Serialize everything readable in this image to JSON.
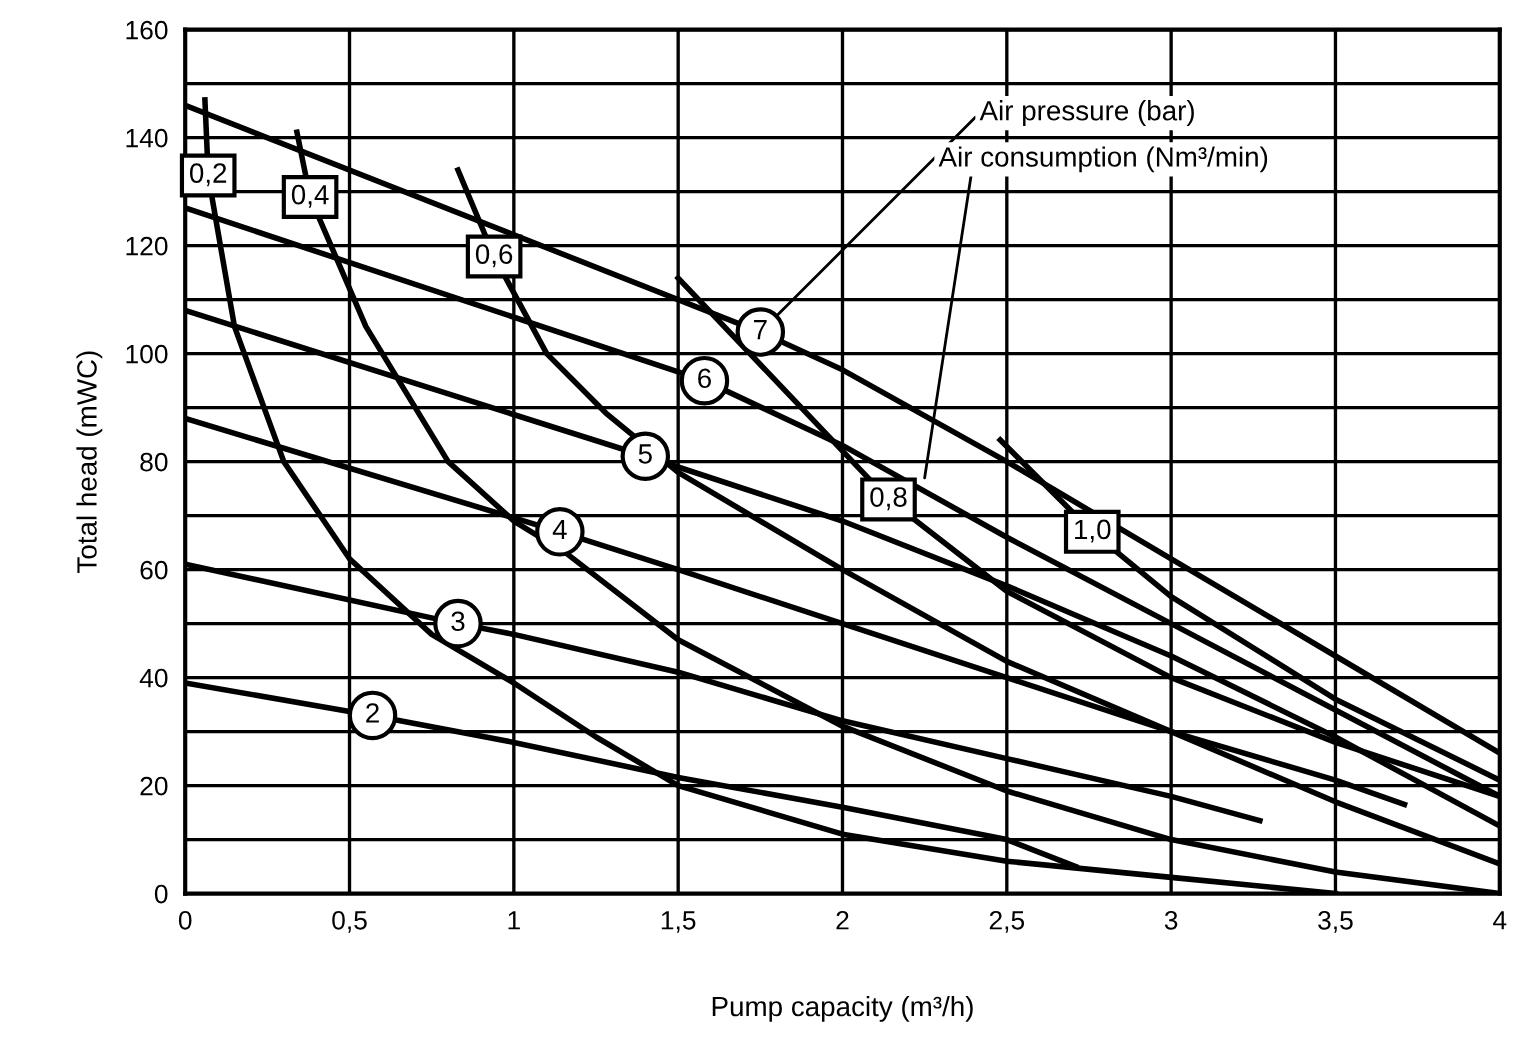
{
  "chart_data": {
    "type": "line",
    "xlabel": "Pump capacity (m³/h)",
    "ylabel": "Total head (mWC)",
    "xlim": [
      0,
      4
    ],
    "ylim": [
      0,
      160
    ],
    "xticks": [
      0,
      {
        "value": 0.5,
        "label": "0,5"
      },
      1,
      {
        "value": 1.5,
        "label": "1,5"
      },
      2,
      {
        "value": 2.5,
        "label": "2,5"
      },
      3,
      {
        "value": 3.5,
        "label": "3,5"
      },
      4
    ],
    "yticks": [
      0,
      {
        "value": 10,
        "label": null
      },
      20,
      {
        "value": 30,
        "label": null
      },
      40,
      {
        "value": 50,
        "label": null
      },
      60,
      {
        "value": 70,
        "label": null
      },
      80,
      {
        "value": 90,
        "label": null
      },
      100,
      {
        "value": 110,
        "label": null
      },
      120,
      {
        "value": 130,
        "label": null
      },
      140,
      {
        "value": 150,
        "label": null
      },
      160
    ],
    "grid": true,
    "legend": false,
    "marker": "none",
    "line_style": "solid",
    "series": [
      {
        "name": "2",
        "color": "#000000",
        "x": [
          0,
          0.57,
          1,
          1.5,
          2,
          2.5,
          2.71
        ],
        "values": [
          39,
          33,
          28,
          21.5,
          16,
          10,
          5
        ]
      },
      {
        "name": "3",
        "color": "#000000",
        "x": [
          0,
          0.83,
          1,
          1.5,
          2,
          2.5,
          3,
          3.27
        ],
        "values": [
          61,
          50,
          48,
          41,
          32,
          25,
          18,
          13.5
        ]
      },
      {
        "name": "4",
        "color": "#000000",
        "x": [
          0,
          1.14,
          1.5,
          2,
          2.5,
          3,
          3.5,
          3.71
        ],
        "values": [
          88,
          67,
          60,
          50,
          40,
          30,
          21,
          16.5
        ]
      },
      {
        "name": "5",
        "color": "#000000",
        "x": [
          0,
          1.4,
          2,
          2.5,
          3,
          3.5,
          4
        ],
        "values": [
          108,
          81,
          69,
          57,
          44,
          29,
          12.5
        ]
      },
      {
        "name": "6",
        "color": "#000000",
        "x": [
          0,
          1.58,
          2,
          2.5,
          3,
          3.5,
          4
        ],
        "values": [
          127,
          95,
          83,
          66,
          50,
          34,
          18
        ]
      },
      {
        "name": "7",
        "color": "#000000",
        "x": [
          0,
          1.75,
          2,
          2.5,
          3,
          3.5,
          4
        ],
        "values": [
          146,
          104,
          97,
          80,
          62,
          44,
          26
        ]
      },
      {
        "name": "0,2",
        "color": "#000000",
        "x": [
          0.06,
          0.07,
          0.15,
          0.3,
          0.5,
          0.75,
          1,
          1.25,
          1.5,
          2,
          2.5,
          3,
          3.5
        ],
        "values": [
          147,
          133,
          105,
          80,
          62,
          48,
          39,
          29,
          20,
          11,
          6,
          3,
          0
        ]
      },
      {
        "name": "0,4",
        "color": "#000000",
        "x": [
          0.34,
          0.38,
          0.55,
          0.8,
          1,
          1.16,
          1.5,
          2,
          2.5,
          3,
          3.5,
          4
        ],
        "values": [
          141,
          129,
          105,
          80,
          69,
          63,
          47,
          31,
          19,
          10,
          4,
          0
        ]
      },
      {
        "name": "0,6",
        "color": "#000000",
        "x": [
          0.83,
          0.94,
          1.1,
          1.28,
          1.5,
          2,
          2.5,
          3,
          3.5,
          4
        ],
        "values": [
          134,
          118,
          100,
          89,
          78,
          60,
          43,
          30,
          17,
          5.5
        ]
      },
      {
        "name": "0,8",
        "color": "#000000",
        "x": [
          1.5,
          2.14,
          2.5,
          3,
          3.5,
          4
        ],
        "values": [
          114,
          73,
          56,
          40,
          28,
          18
        ]
      },
      {
        "name": "1,0",
        "color": "#000000",
        "x": [
          2.48,
          2.76,
          3,
          3.5,
          4
        ],
        "values": [
          84,
          67,
          55,
          36,
          21
        ]
      }
    ],
    "annotations": [
      {
        "text": "Air pressure (bar)",
        "x": 1.8,
        "y": 107
      },
      {
        "text": "Air consumption (Nm³/min)",
        "x": 2.25,
        "y": 77
      }
    ]
  }
}
